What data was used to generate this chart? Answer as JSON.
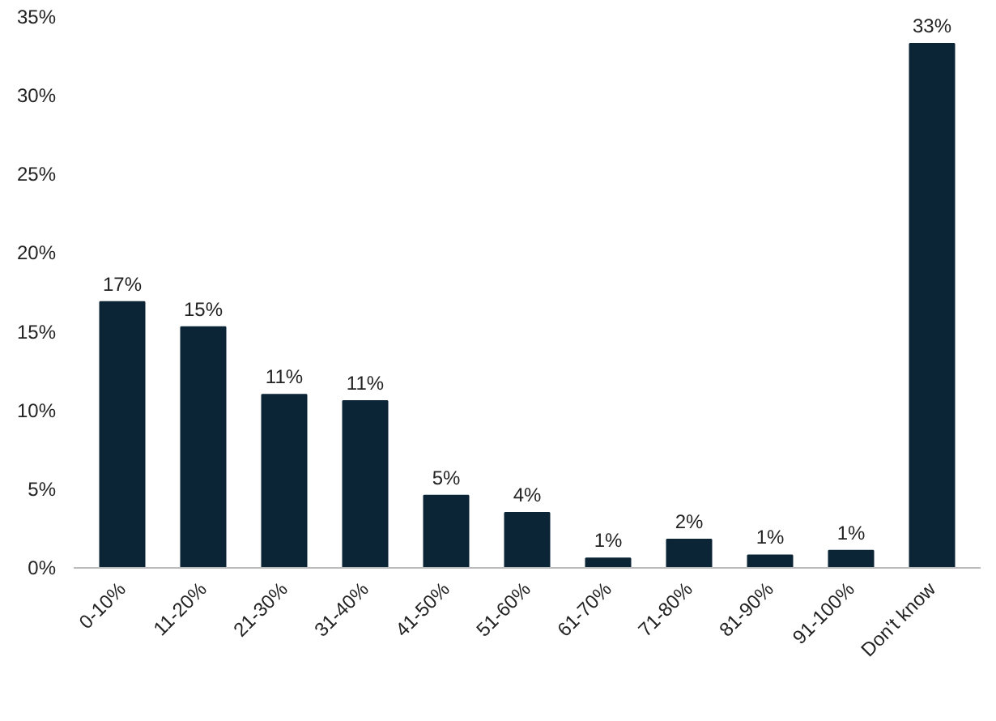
{
  "chart_data": {
    "type": "bar",
    "categories": [
      "0-10%",
      "11-20%",
      "21-30%",
      "31-40%",
      "41-50%",
      "51-60%",
      "61-70%",
      "71-80%",
      "81-90%",
      "91-100%",
      "Don't know"
    ],
    "values": [
      16.9,
      15.3,
      11.0,
      10.6,
      4.6,
      3.5,
      0.6,
      1.8,
      0.8,
      1.1,
      33.3
    ],
    "value_labels": [
      "17%",
      "15%",
      "11%",
      "11%",
      "5%",
      "4%",
      "1%",
      "2%",
      "1%",
      "1%",
      "33%"
    ],
    "color": "#0b2436",
    "ylim": [
      0,
      35
    ],
    "yticks": [
      {
        "value": 0,
        "label": "0%"
      },
      {
        "value": 5,
        "label": "5%"
      },
      {
        "value": 10,
        "label": "10%"
      },
      {
        "value": 15,
        "label": "15%"
      },
      {
        "value": 20,
        "label": "20%"
      },
      {
        "value": 25,
        "label": "25%"
      },
      {
        "value": 30,
        "label": "30%"
      },
      {
        "value": 35,
        "label": "35%"
      }
    ],
    "grid": false
  }
}
